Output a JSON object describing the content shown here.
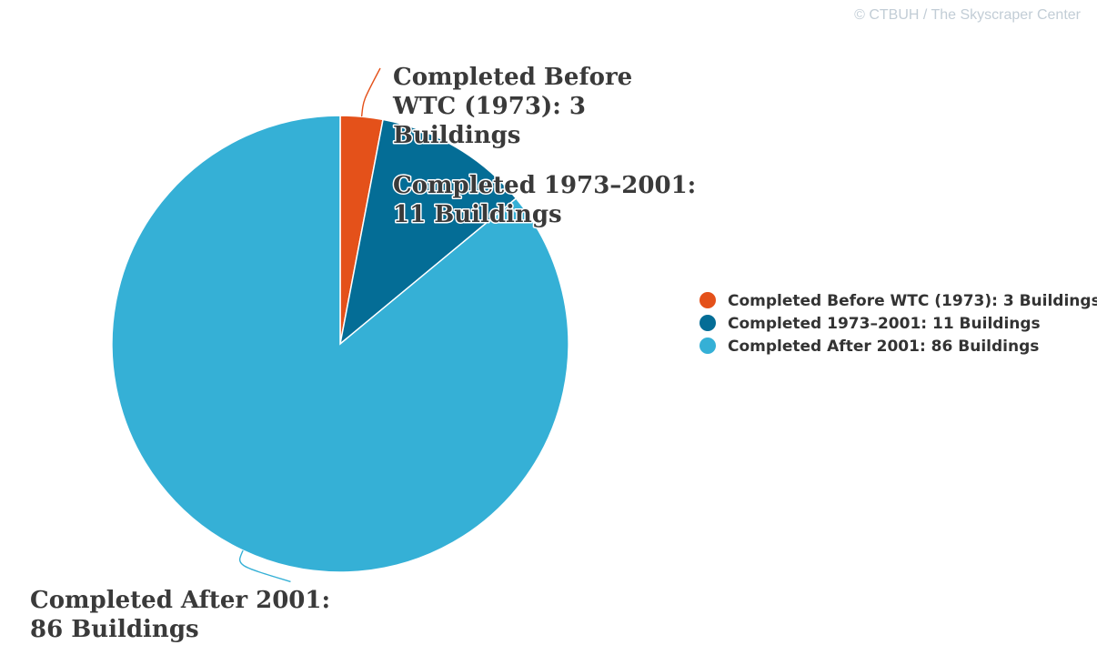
{
  "credit": "© CTBUH / The Skyscraper Center",
  "chart_data": {
    "type": "pie",
    "slices": [
      {
        "label": "Completed Before WTC (1973): 3 Buildings",
        "label_lines": [
          "Completed Before",
          "WTC (1973): 3",
          "Buildings"
        ],
        "value": 3,
        "color": "#e4511a"
      },
      {
        "label": "Completed 1973–2001: 11 Buildings",
        "label_lines": [
          "Completed 1973–2001:",
          "11 Buildings"
        ],
        "value": 11,
        "color": "#046d96"
      },
      {
        "label": "Completed After 2001: 86 Buildings",
        "label_lines": [
          "Completed After 2001:",
          "86 Buildings"
        ],
        "value": 86,
        "color": "#35b0d6"
      }
    ],
    "legend_position": "right"
  }
}
